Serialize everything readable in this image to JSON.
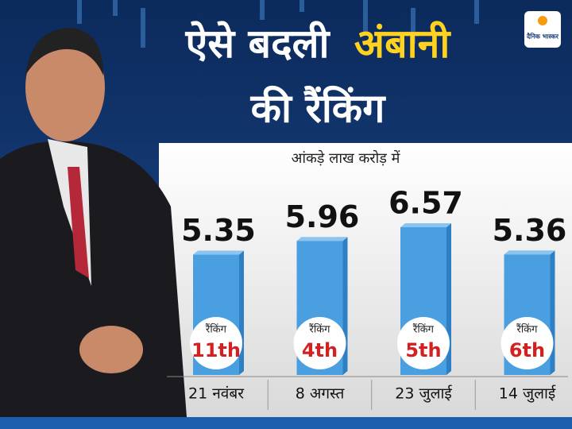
{
  "chart_data": {
    "type": "bar",
    "title": [
      "ऐसे बदली",
      "अंबानी",
      "की रैंकिंग"
    ],
    "subtitle": "आंकड़े लाख करोड़ में",
    "source": "दैनिक भास्कर",
    "categories": [
      "21 नवंबर",
      "8 अगस्त",
      "23 जुलाई",
      "14 जुलाई"
    ],
    "values": [
      5.35,
      5.96,
      6.57,
      5.36
    ],
    "color": "#4a9fe0",
    "rank_label": "रैंकिंग",
    "ranks": [
      "11th",
      "4th",
      "5th",
      "6th"
    ]
  }
}
